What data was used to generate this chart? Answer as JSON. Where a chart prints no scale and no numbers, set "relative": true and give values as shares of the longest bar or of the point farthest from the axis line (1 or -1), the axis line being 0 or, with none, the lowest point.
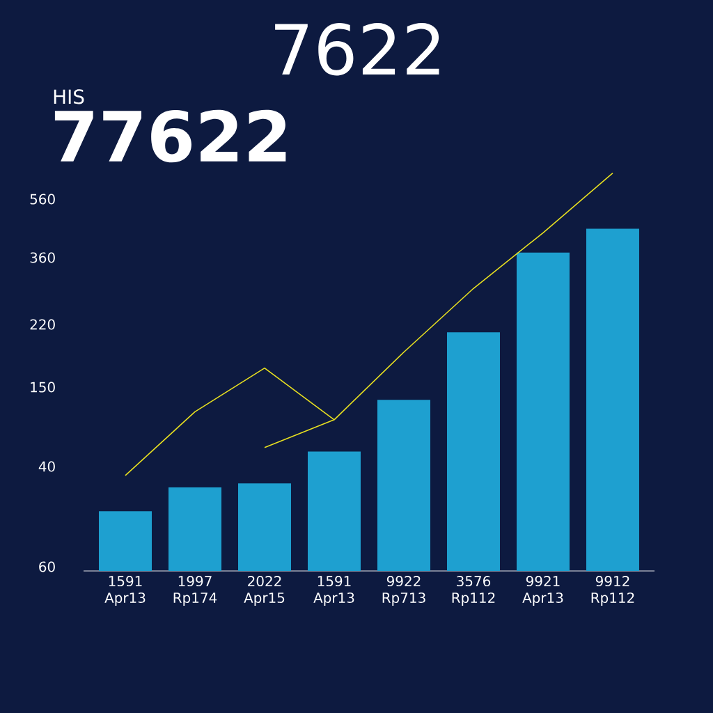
{
  "chart_data": {
    "type": "bar",
    "subtitle": "HIS",
    "title": "77622",
    "annotations": [
      "7622",
      "560",
      "360",
      "220",
      "150",
      "40",
      "60"
    ],
    "categories": [
      "1591 Apr13",
      "1997 Rp174",
      "2022 Apr15",
      "1591 Apr13",
      "9922 Rp713",
      "3576 Rp112",
      "9921 Apr13",
      "9912 Rp112"
    ],
    "relative": true,
    "series": [
      {
        "color": "#1ea0d0",
        "values": [
          0.15,
          0.21,
          0.22,
          0.3,
          0.43,
          0.6,
          0.8,
          0.86
        ]
      },
      {
        "type": "line",
        "color": "#e8e020",
        "values": [
          0.24,
          0.4,
          0.51,
          0.38,
          null,
          null,
          null,
          null
        ]
      },
      {
        "type": "line",
        "color": "#e8e020",
        "values": [
          null,
          null,
          0.31,
          0.38,
          0.55,
          0.71,
          0.85,
          1
        ]
      }
    ]
  }
}
